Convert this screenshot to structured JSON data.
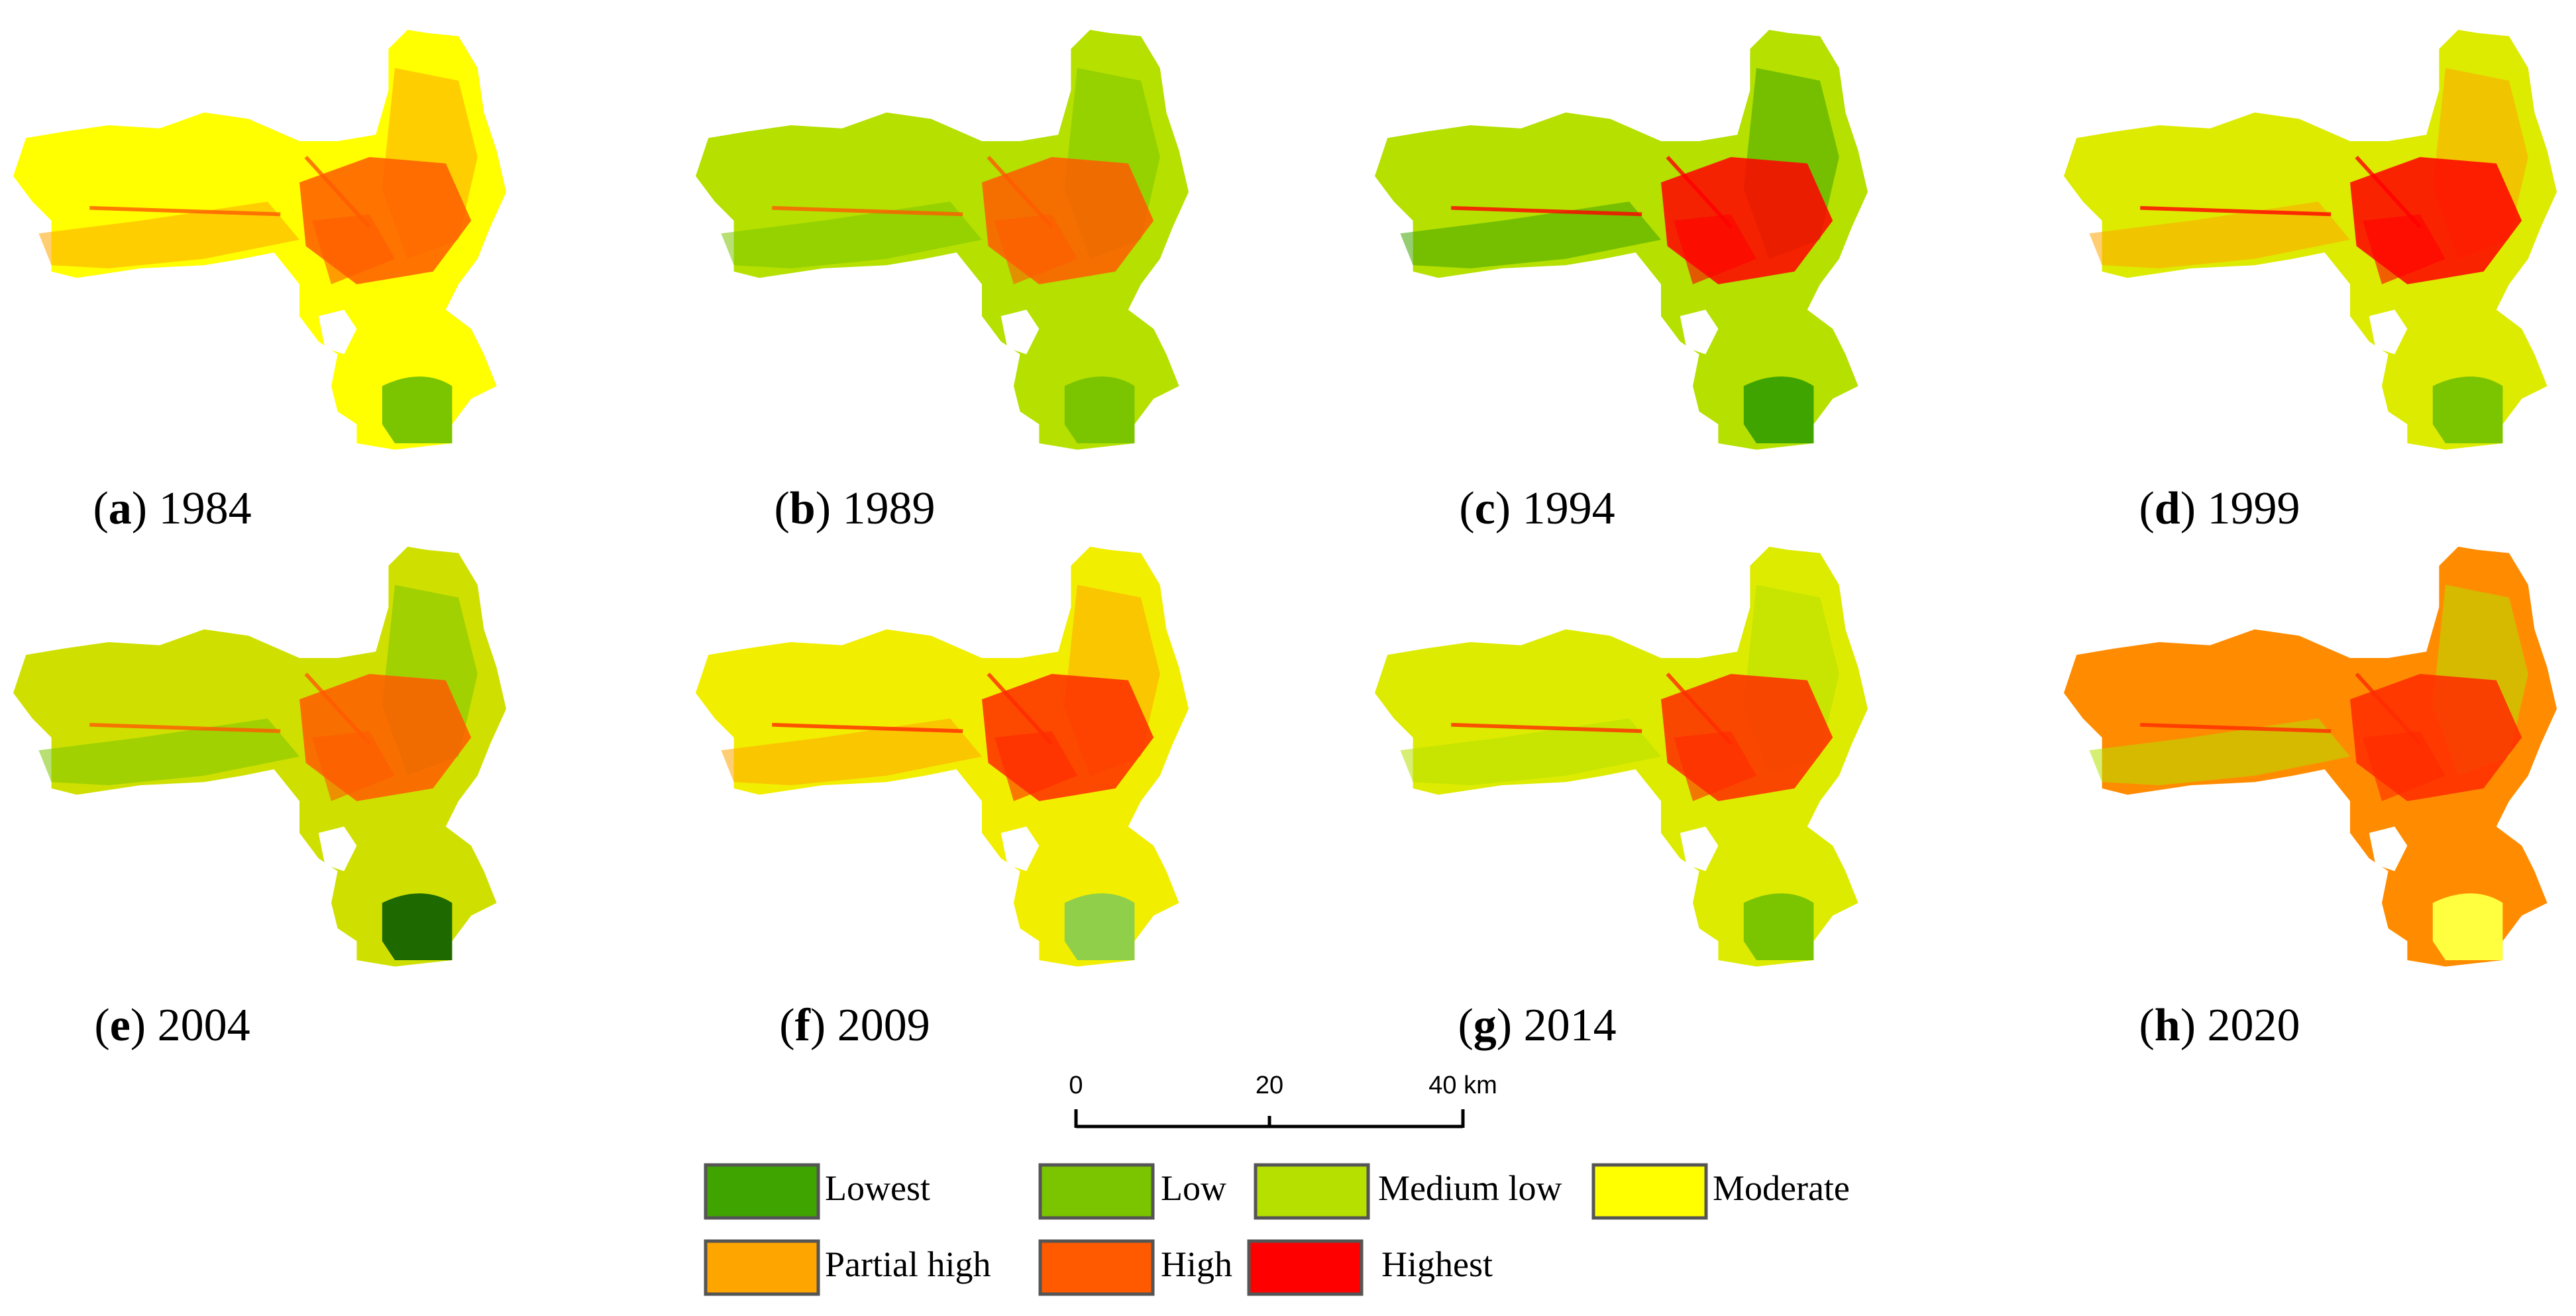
{
  "figure": {
    "panels": [
      {
        "letter": "a",
        "year": "1984",
        "dominant": "#FFFF00",
        "secondary": "#FFA500",
        "core": "#FF5A00",
        "lake": "#7BC400"
      },
      {
        "letter": "b",
        "year": "1989",
        "dominant": "#B5E000",
        "secondary": "#7BC400",
        "core": "#FF5A00",
        "lake": "#7BC400"
      },
      {
        "letter": "c",
        "year": "1994",
        "dominant": "#B5E000",
        "secondary": "#3FA400",
        "core": "#FF0000",
        "lake": "#3FA400"
      },
      {
        "letter": "d",
        "year": "1999",
        "dominant": "#DDEB00",
        "secondary": "#FFA500",
        "core": "#FF0000",
        "lake": "#7BC400"
      },
      {
        "letter": "e",
        "year": "2004",
        "dominant": "#CFE000",
        "secondary": "#7BC400",
        "core": "#FF5A00",
        "lake": "#1E6A00"
      },
      {
        "letter": "f",
        "year": "2009",
        "dominant": "#F2EE00",
        "secondary": "#FFA500",
        "core": "#FF2A00",
        "lake": "#8FCF4A"
      },
      {
        "letter": "g",
        "year": "2014",
        "dominant": "#DDEB00",
        "secondary": "#B5E000",
        "core": "#FF2A00",
        "lake": "#7BC400"
      },
      {
        "letter": "h",
        "year": "2020",
        "dominant": "#FF8C00",
        "secondary": "#B5E000",
        "core": "#FF2A00",
        "lake": "#FFFF40"
      }
    ]
  },
  "scale_bar": {
    "ticks": [
      "0",
      "20",
      "40 km"
    ]
  },
  "legend": [
    {
      "label": "Lowest",
      "color": "#3FA400"
    },
    {
      "label": "Low",
      "color": "#7BC400"
    },
    {
      "label": "Medium low",
      "color": "#B5E000"
    },
    {
      "label": "Moderate",
      "color": "#FFFF00"
    },
    {
      "label": "Partial high",
      "color": "#FFA500"
    },
    {
      "label": "High",
      "color": "#FF5A00"
    },
    {
      "label": "Highest",
      "color": "#FF0000"
    }
  ]
}
